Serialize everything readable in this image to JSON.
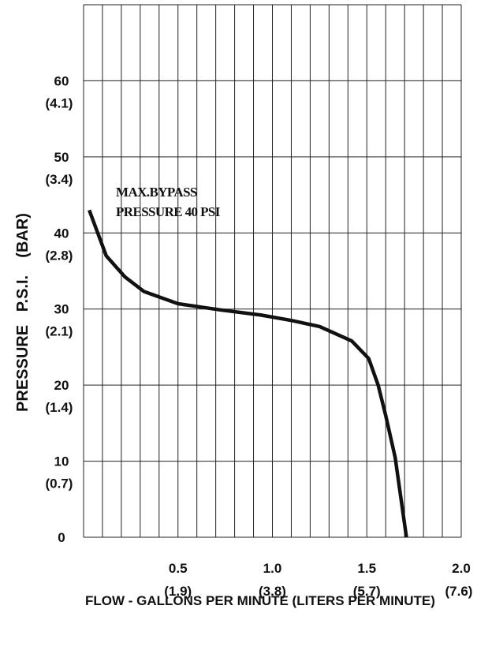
{
  "chart_data": {
    "type": "line",
    "title": "",
    "xlabel": "FLOW - GALLONS PER MINUTE  (LITERS PER MINUTE)",
    "ylabel": "PRESSURE   P.S.I.    (BAR)",
    "xlim": [
      0,
      2.0
    ],
    "ylim": [
      0,
      70
    ],
    "grid": true,
    "x_ticks": [
      {
        "value": 0.5,
        "label": "0.5",
        "sublabel": "(1.9)"
      },
      {
        "value": 1.0,
        "label": "1.0",
        "sublabel": "(3.8)"
      },
      {
        "value": 1.5,
        "label": "1.5",
        "sublabel": "(5.7)"
      },
      {
        "value": 2.0,
        "label": "2.0",
        "sublabel": "(7.6)"
      }
    ],
    "y_ticks": [
      {
        "value": 0,
        "label": "0",
        "sublabel": ""
      },
      {
        "value": 10,
        "label": "10",
        "sublabel": "(0.7)"
      },
      {
        "value": 20,
        "label": "20",
        "sublabel": "(1.4)"
      },
      {
        "value": 30,
        "label": "30",
        "sublabel": "(2.1)"
      },
      {
        "value": 40,
        "label": "40",
        "sublabel": "(2.8)"
      },
      {
        "value": 50,
        "label": "50",
        "sublabel": "(3.4)"
      },
      {
        "value": 60,
        "label": "60",
        "sublabel": "(4.1)"
      }
    ],
    "annotations": [
      "MAX.BYPASS",
      "PRESSURE 40 PSI"
    ],
    "series": [
      {
        "x": [
          0.03,
          0.12,
          0.22,
          0.32,
          0.5,
          0.72,
          0.94,
          1.1,
          1.25,
          1.42,
          1.51,
          1.56,
          1.6,
          1.65,
          1.71
        ],
        "y": [
          43.0,
          37.0,
          34.2,
          32.3,
          30.7,
          29.9,
          29.2,
          28.5,
          27.7,
          25.8,
          23.5,
          20.0,
          16.0,
          10.5,
          0.0
        ]
      }
    ]
  },
  "colors": {
    "line": "#111111",
    "grid": "#222222",
    "background": "#ffffff"
  }
}
